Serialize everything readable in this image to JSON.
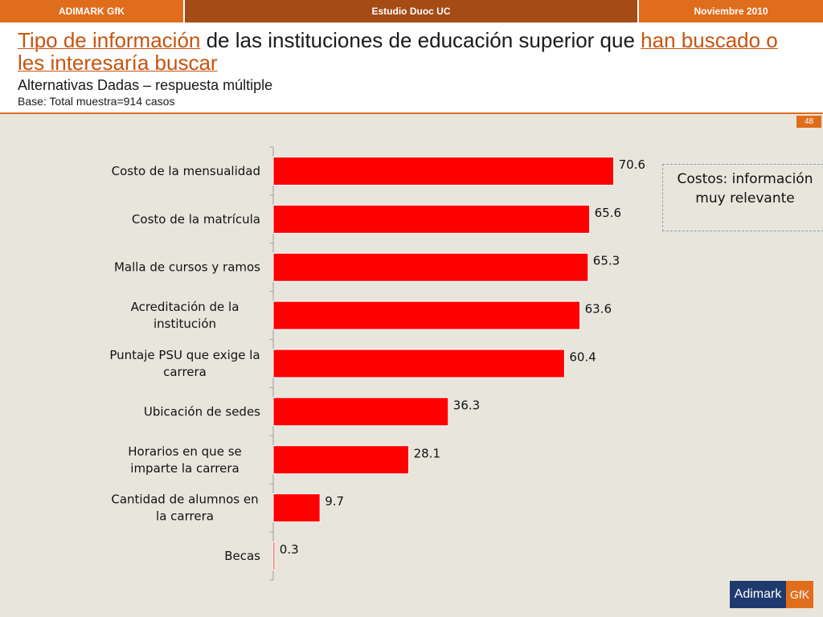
{
  "topbar": {
    "left": "ADIMARK GfK",
    "center": "Estudio Duoc UC",
    "right": "Noviembre 2010"
  },
  "header": {
    "title_part1": "Tipo de información",
    "title_part2": " de las instituciones de educación superior que ",
    "title_part3": "han buscado o les interesaría buscar",
    "subtitle": "Alternativas Dadas – respuesta múltiple",
    "base": "Base: Total muestra=914 casos"
  },
  "page_number": "48",
  "callout": "Costos: información muy relevante",
  "logo": {
    "left": "Adimark",
    "right": "GfK"
  },
  "colors": {
    "bar": "#ff0000",
    "accent": "#e06d1c",
    "dark_accent": "#a54b16",
    "background": "#e8e6dc"
  },
  "chart_data": {
    "type": "bar",
    "orientation": "horizontal",
    "categories": [
      [
        "Costo de la mensualidad"
      ],
      [
        "Costo de la matrícula"
      ],
      [
        "Malla de cursos y ramos"
      ],
      [
        "Acreditación de la",
        "institución"
      ],
      [
        "Puntaje PSU que exige la",
        "carrera"
      ],
      [
        "Ubicación de sedes"
      ],
      [
        "Horarios en que se",
        "imparte la carrera"
      ],
      [
        "Cantidad de alumnos en",
        "la carrera"
      ],
      [
        "Becas"
      ]
    ],
    "values": [
      70.6,
      65.6,
      65.3,
      63.6,
      60.4,
      36.3,
      28.1,
      9.7,
      0.3
    ],
    "value_labels": [
      "70.6",
      "65.6",
      "65.3",
      "63.6",
      "60.4",
      "36.3",
      "28.1",
      "9.7",
      "0.3"
    ],
    "xlim": [
      0,
      75
    ],
    "grid": false,
    "legend": "none"
  }
}
